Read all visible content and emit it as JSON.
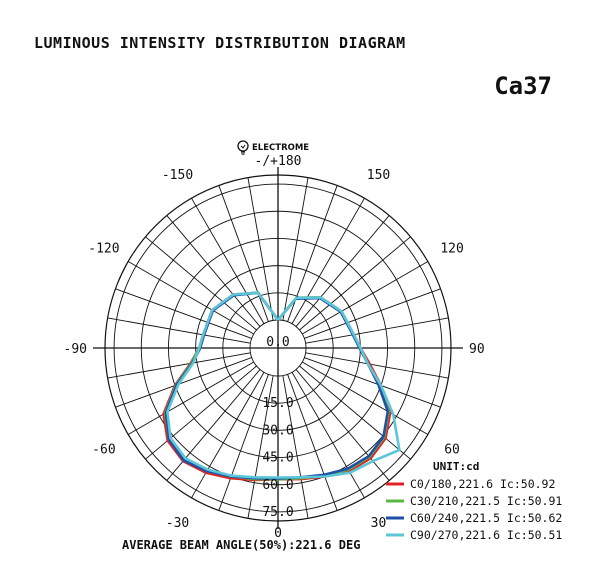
{
  "header": {
    "title": "LUMINOUS INTENSITY DISTRIBUTION DIAGRAM",
    "model": "Ca37"
  },
  "brand": {
    "name": "ELECTROME",
    "icon": "lightbulb-icon"
  },
  "footer": {
    "beam_angle_text": "AVERAGE BEAM ANGLE(50%):221.6 DEG"
  },
  "chart_data": {
    "type": "polar",
    "unit_label": "UNIT:cd",
    "angle_labels": [
      {
        "angle": 180,
        "text": "-/+180"
      },
      {
        "angle": -150,
        "text": "-150"
      },
      {
        "angle": 150,
        "text": "150"
      },
      {
        "angle": -120,
        "text": "-120"
      },
      {
        "angle": 120,
        "text": "120"
      },
      {
        "angle": -90,
        "text": "-90"
      },
      {
        "angle": 90,
        "text": "90"
      },
      {
        "angle": -60,
        "text": "-60"
      },
      {
        "angle": 60,
        "text": "60"
      },
      {
        "angle": -30,
        "text": "-30"
      },
      {
        "angle": 30,
        "text": "30"
      },
      {
        "angle": 0,
        "text": "0"
      }
    ],
    "radial_ticks": [
      0,
      15.0,
      30.0,
      45.0,
      60.0,
      75.0
    ],
    "radial_tick_labels": [
      "0.0",
      "15.0",
      "30.0",
      "45.0",
      "60.0",
      "75.0"
    ],
    "rmax": 80,
    "angles": [
      -180,
      -160,
      -140,
      -120,
      -100,
      -90,
      -80,
      -70,
      -60,
      -50,
      -40,
      -30,
      -20,
      -10,
      0,
      10,
      20,
      30,
      40,
      50,
      60,
      70,
      80,
      90,
      100,
      120,
      140,
      160,
      180
    ],
    "series": [
      {
        "name": "C0/180,221.6 Ic:50.92",
        "color": "#e02424",
        "values": [
          0,
          17,
          23,
          26.5,
          26.5,
          28,
          33.5,
          45,
          57.5,
          64,
          66,
          64,
          61,
          58.5,
          57,
          58,
          60,
          63,
          64,
          62,
          56,
          45,
          36,
          30,
          27,
          25,
          21,
          14,
          0
        ]
      },
      {
        "name": "C30/210,221.5 Ic:50.91",
        "color": "#5cb845",
        "values": [
          0,
          17,
          23,
          26,
          26.5,
          28,
          33,
          44.5,
          56.5,
          63,
          65,
          63,
          60,
          58,
          57,
          57.5,
          59.5,
          62,
          63,
          61,
          55,
          44,
          35,
          30,
          27,
          25,
          21,
          14,
          0
        ]
      },
      {
        "name": "C60/240,221.5 Ic:50.62",
        "color": "#1f4fa8",
        "values": [
          0,
          17,
          22.5,
          26,
          26,
          27.5,
          32.5,
          44,
          56,
          63,
          65.5,
          63,
          60,
          57.5,
          56.5,
          57,
          59,
          61.5,
          62.5,
          60.5,
          54.5,
          43.5,
          35,
          29.5,
          26.5,
          24.5,
          20.5,
          13.5,
          0
        ]
      },
      {
        "name": "C90/270,221.6 Ic:50.51",
        "color": "#5bc6d8",
        "values": [
          0,
          17,
          23,
          26.5,
          26.5,
          28,
          32,
          43,
          55,
          62,
          64,
          62,
          59.5,
          57,
          56,
          57,
          60,
          64,
          66,
          72,
          58,
          45,
          35,
          30,
          27,
          25,
          21,
          14,
          0
        ]
      }
    ]
  }
}
